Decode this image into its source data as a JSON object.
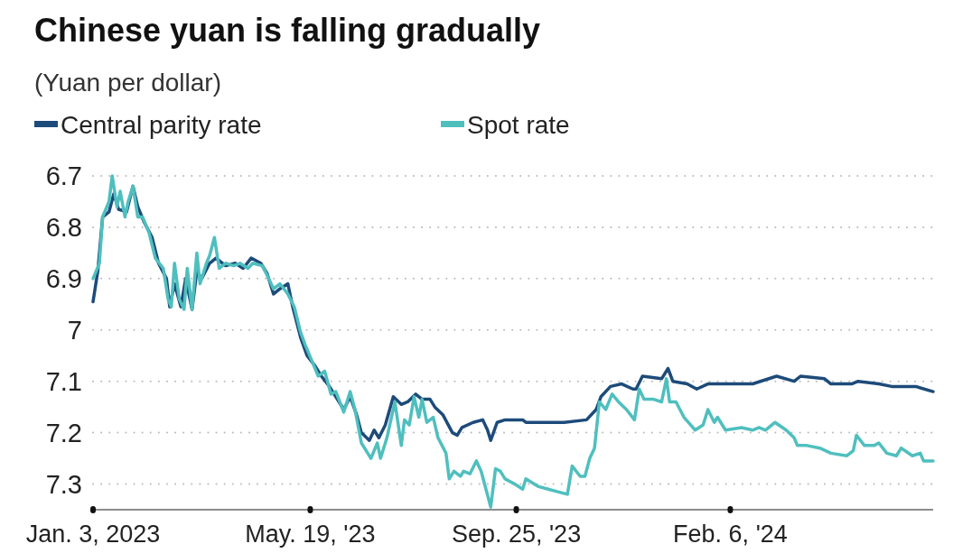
{
  "chart_data": {
    "type": "line",
    "title": "Chinese yuan is falling gradually",
    "subtitle": "(Yuan per dollar)",
    "legend": "top left",
    "grid": "y",
    "xlim": [
      "2023-01-03",
      "2024-06-12"
    ],
    "xticks": [
      {
        "value": "2023-01-03",
        "label": "Jan. 3, 2023"
      },
      {
        "value": "2023-05-19",
        "label": "May. 19, '23"
      },
      {
        "value": "2023-09-25",
        "label": "Sep. 25, '23"
      },
      {
        "value": "2024-02-06",
        "label": "Feb. 6, '24"
      }
    ],
    "ylim": [
      7.35,
      6.7
    ],
    "yticks": [
      6.7,
      6.8,
      6.9,
      7,
      7.1,
      7.2,
      7.3
    ],
    "series": [
      {
        "name": "Central parity rate",
        "color": "#1d4b7a",
        "x": [
          "2023-01-03",
          "2023-01-06",
          "2023-01-09",
          "2023-01-13",
          "2023-01-16",
          "2023-01-19",
          "2023-01-24",
          "2023-01-28",
          "2023-01-31",
          "2023-02-04",
          "2023-02-09",
          "2023-02-13",
          "2023-02-18",
          "2023-02-20",
          "2023-02-23",
          "2023-02-27",
          "2023-03-02",
          "2023-03-06",
          "2023-03-09",
          "2023-03-12",
          "2023-03-17",
          "2023-03-21",
          "2023-03-27",
          "2023-04-02",
          "2023-04-07",
          "2023-04-12",
          "2023-04-18",
          "2023-04-22",
          "2023-04-26",
          "2023-04-30",
          "2023-05-05",
          "2023-05-08",
          "2023-05-13",
          "2023-05-17",
          "2023-05-22",
          "2023-05-26",
          "2023-05-31",
          "2023-06-04",
          "2023-06-09",
          "2023-06-13",
          "2023-06-17",
          "2023-06-20",
          "2023-06-25",
          "2023-06-28",
          "2023-07-01",
          "2023-07-05",
          "2023-07-10",
          "2023-07-15",
          "2023-07-19",
          "2023-07-24",
          "2023-07-28",
          "2023-08-02",
          "2023-08-05",
          "2023-08-10",
          "2023-08-16",
          "2023-08-19",
          "2023-08-22",
          "2023-08-29",
          "2023-09-04",
          "2023-09-07",
          "2023-09-09",
          "2023-09-13",
          "2023-09-18",
          "2023-09-29",
          "2023-10-01",
          "2023-10-11",
          "2023-10-25",
          "2023-11-08",
          "2023-11-14",
          "2023-11-17",
          "2023-11-23",
          "2023-11-30",
          "2023-12-07",
          "2023-12-09",
          "2023-12-13",
          "2023-12-25",
          "2023-12-29",
          "2024-01-01",
          "2024-01-10",
          "2024-01-16",
          "2024-01-23",
          "2024-02-09",
          "2024-02-20",
          "2024-03-06",
          "2024-03-17",
          "2024-03-21",
          "2024-04-05",
          "2024-04-09",
          "2024-04-22",
          "2024-04-26",
          "2024-05-09",
          "2024-05-17",
          "2024-06-01",
          "2024-06-12"
        ],
        "values": [
          6.945,
          6.885,
          6.78,
          6.77,
          6.735,
          6.765,
          6.77,
          6.72,
          6.76,
          6.79,
          6.82,
          6.87,
          6.9,
          6.955,
          6.91,
          6.955,
          6.9,
          6.96,
          6.885,
          6.9,
          6.87,
          6.86,
          6.875,
          6.87,
          6.88,
          6.86,
          6.87,
          6.89,
          6.93,
          6.92,
          6.91,
          6.955,
          7.015,
          7.05,
          7.07,
          7.09,
          7.11,
          7.13,
          7.155,
          7.13,
          7.165,
          7.2,
          7.215,
          7.195,
          7.21,
          7.185,
          7.13,
          7.145,
          7.14,
          7.125,
          7.135,
          7.135,
          7.15,
          7.165,
          7.2,
          7.205,
          7.19,
          7.18,
          7.175,
          7.195,
          7.215,
          7.18,
          7.175,
          7.175,
          7.18,
          7.18,
          7.18,
          7.175,
          7.155,
          7.13,
          7.11,
          7.105,
          7.115,
          7.115,
          7.09,
          7.095,
          7.075,
          7.1,
          7.105,
          7.115,
          7.105,
          7.105,
          7.105,
          7.09,
          7.1,
          7.09,
          7.095,
          7.105,
          7.105,
          7.1,
          7.105,
          7.11,
          7.11,
          7.12
        ]
      },
      {
        "name": "Spot rate",
        "color": "#4fbfbe",
        "x": [
          "2023-01-03",
          "2023-01-07",
          "2023-01-09",
          "2023-01-13",
          "2023-01-15",
          "2023-01-18",
          "2023-01-20",
          "2023-01-23",
          "2023-01-25",
          "2023-01-28",
          "2023-01-31",
          "2023-02-03",
          "2023-02-07",
          "2023-02-11",
          "2023-02-16",
          "2023-02-19",
          "2023-02-21",
          "2023-02-23",
          "2023-02-26",
          "2023-03-01",
          "2023-03-03",
          "2023-03-06",
          "2023-03-09",
          "2023-03-11",
          "2023-03-15",
          "2023-03-17",
          "2023-03-20",
          "2023-03-23",
          "2023-03-27",
          "2023-04-01",
          "2023-04-05",
          "2023-04-10",
          "2023-04-13",
          "2023-04-19",
          "2023-04-23",
          "2023-04-26",
          "2023-04-30",
          "2023-05-05",
          "2023-05-09",
          "2023-05-13",
          "2023-05-16",
          "2023-05-20",
          "2023-05-24",
          "2023-05-28",
          "2023-06-01",
          "2023-06-04",
          "2023-06-09",
          "2023-06-13",
          "2023-06-16",
          "2023-06-20",
          "2023-06-26",
          "2023-06-30",
          "2023-07-02",
          "2023-07-06",
          "2023-07-11",
          "2023-07-15",
          "2023-07-17",
          "2023-07-20",
          "2023-07-23",
          "2023-07-26",
          "2023-07-28",
          "2023-07-31",
          "2023-08-04",
          "2023-08-07",
          "2023-08-12",
          "2023-08-14",
          "2023-08-17",
          "2023-08-21",
          "2023-08-23",
          "2023-08-27",
          "2023-08-31",
          "2023-09-03",
          "2023-09-06",
          "2023-09-09",
          "2023-09-12",
          "2023-09-15",
          "2023-09-18",
          "2023-09-24",
          "2023-09-29",
          "2023-10-01",
          "2023-10-09",
          "2023-10-15",
          "2023-10-21",
          "2023-10-27",
          "2023-10-30",
          "2023-11-04",
          "2023-11-07",
          "2023-11-10",
          "2023-11-13",
          "2023-11-16",
          "2023-11-20",
          "2023-11-24",
          "2023-11-28",
          "2023-12-03",
          "2023-12-08",
          "2023-12-11",
          "2023-12-14",
          "2023-12-20",
          "2023-12-25",
          "2023-12-28",
          "2023-12-30",
          "2024-01-03",
          "2024-01-08",
          "2024-01-15",
          "2024-01-20",
          "2024-01-23",
          "2024-01-27",
          "2024-01-29",
          "2024-02-03",
          "2024-02-13",
          "2024-02-20",
          "2024-02-24",
          "2024-02-28",
          "2024-03-05",
          "2024-03-12",
          "2024-03-17",
          "2024-03-19",
          "2024-03-25",
          "2024-04-02",
          "2024-04-09",
          "2024-04-19",
          "2024-04-23",
          "2024-04-25",
          "2024-04-30",
          "2024-05-06",
          "2024-05-09",
          "2024-05-14",
          "2024-05-20",
          "2024-05-23",
          "2024-05-30",
          "2024-06-04",
          "2024-06-06",
          "2024-06-12"
        ],
        "values": [
          6.9,
          6.87,
          6.78,
          6.75,
          6.7,
          6.76,
          6.73,
          6.78,
          6.75,
          6.72,
          6.78,
          6.78,
          6.81,
          6.86,
          6.88,
          6.94,
          6.955,
          6.87,
          6.94,
          6.96,
          6.88,
          6.96,
          6.85,
          6.91,
          6.87,
          6.855,
          6.82,
          6.88,
          6.87,
          6.875,
          6.87,
          6.88,
          6.87,
          6.875,
          6.9,
          6.92,
          6.91,
          6.93,
          6.955,
          7.005,
          7.03,
          7.06,
          7.09,
          7.08,
          7.125,
          7.12,
          7.16,
          7.12,
          7.155,
          7.22,
          7.25,
          7.22,
          7.25,
          7.21,
          7.14,
          7.225,
          7.175,
          7.185,
          7.13,
          7.17,
          7.135,
          7.18,
          7.17,
          7.21,
          7.24,
          7.29,
          7.275,
          7.285,
          7.275,
          7.28,
          7.255,
          7.275,
          7.31,
          7.345,
          7.27,
          7.275,
          7.29,
          7.3,
          7.31,
          7.29,
          7.305,
          7.31,
          7.315,
          7.32,
          7.265,
          7.285,
          7.285,
          7.25,
          7.23,
          7.14,
          7.155,
          7.125,
          7.14,
          7.155,
          7.175,
          7.115,
          7.135,
          7.135,
          7.14,
          7.095,
          7.14,
          7.14,
          7.17,
          7.195,
          7.185,
          7.155,
          7.18,
          7.17,
          7.195,
          7.19,
          7.195,
          7.19,
          7.195,
          7.18,
          7.195,
          7.21,
          7.225,
          7.225,
          7.23,
          7.24,
          7.245,
          7.235,
          7.205,
          7.225,
          7.225,
          7.22,
          7.24,
          7.245,
          7.23,
          7.245,
          7.24,
          7.255,
          7.255
        ]
      }
    ]
  }
}
